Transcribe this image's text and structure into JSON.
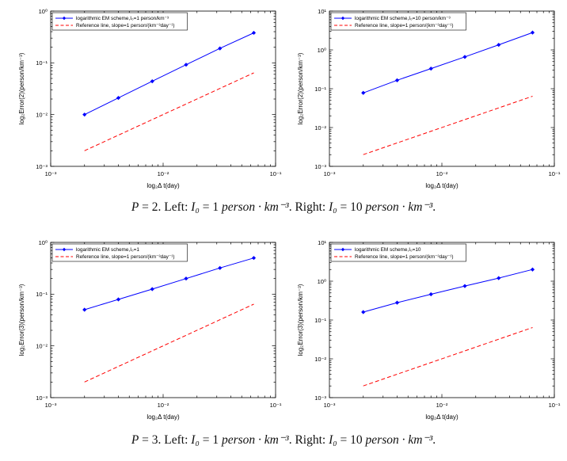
{
  "figure": {
    "background": "#ffffff"
  },
  "colors": {
    "series_blue": "#0000ff",
    "reference_red": "#ff0000",
    "axis": "#000000"
  },
  "captions": [
    {
      "segments": [
        {
          "t": "P",
          "i": true
        },
        {
          "t": " = 2. Left: ",
          "i": false
        },
        {
          "t": "I₀",
          "i": true
        },
        {
          "t": " = 1 ",
          "i": false
        },
        {
          "t": "person · km⁻³",
          "i": true
        },
        {
          "t": ". Right: ",
          "i": false
        },
        {
          "t": "I₀",
          "i": true
        },
        {
          "t": " = 10 ",
          "i": false
        },
        {
          "t": "person · km⁻³",
          "i": true
        },
        {
          "t": ".",
          "i": false
        }
      ]
    },
    {
      "segments": [
        {
          "t": "P",
          "i": true
        },
        {
          "t": " = 3. Left: ",
          "i": false
        },
        {
          "t": "I₀",
          "i": true
        },
        {
          "t": " = 1 ",
          "i": false
        },
        {
          "t": "person · km⁻³",
          "i": true
        },
        {
          "t": ". Right: ",
          "i": false
        },
        {
          "t": "I₀",
          "i": true
        },
        {
          "t": " = 10 ",
          "i": false
        },
        {
          "t": "person · km⁻³",
          "i": true
        },
        {
          "t": ".",
          "i": false
        }
      ]
    }
  ],
  "chart_data": [
    {
      "id": "p2-left",
      "type": "line",
      "xscale": "log",
      "yscale": "log",
      "xlim": [
        0.001,
        0.1
      ],
      "ylim": [
        0.001,
        1
      ],
      "xlabel": "log₂Δ t(day)",
      "ylabel": "log₂Error(2)(person/km⁻³)",
      "grid": false,
      "legend_position": "top-left",
      "series": [
        {
          "name": "logarithmic EM scheme,I₀=1 person/km⁻³",
          "color": "#0000ff",
          "line": "solid",
          "marker": "diamond",
          "x": [
            0.002,
            0.004,
            0.008,
            0.016,
            0.032,
            0.064
          ],
          "y": [
            0.01,
            0.021,
            0.044,
            0.092,
            0.19,
            0.38
          ]
        },
        {
          "name": "Reference line, slope=1 person/(km⁻³day⁻¹)",
          "color": "#ff0000",
          "line": "dashed",
          "marker": "none",
          "x": [
            0.002,
            0.064
          ],
          "y": [
            0.002,
            0.064
          ]
        }
      ]
    },
    {
      "id": "p2-right",
      "type": "line",
      "xscale": "log",
      "yscale": "log",
      "xlim": [
        0.001,
        0.1
      ],
      "ylim": [
        0.001,
        10
      ],
      "xlabel": "log₂Δ t(day)",
      "ylabel": "log₂Error(2)(person/km⁻³)",
      "grid": false,
      "legend_position": "top-left",
      "series": [
        {
          "name": "logarithmic EM scheme,I₀=10 person/km⁻³",
          "color": "#0000ff",
          "line": "solid",
          "marker": "diamond",
          "x": [
            0.002,
            0.004,
            0.008,
            0.016,
            0.032,
            0.064
          ],
          "y": [
            0.078,
            0.165,
            0.33,
            0.66,
            1.35,
            2.8
          ]
        },
        {
          "name": "Reference line, slope=1 person/(km⁻³day⁻¹)",
          "color": "#ff0000",
          "line": "dashed",
          "marker": "none",
          "x": [
            0.002,
            0.064
          ],
          "y": [
            0.002,
            0.064
          ]
        }
      ]
    },
    {
      "id": "p3-left",
      "type": "line",
      "xscale": "log",
      "yscale": "log",
      "xlim": [
        0.001,
        0.1
      ],
      "ylim": [
        0.001,
        1
      ],
      "xlabel": "log₂Δ t(day)",
      "ylabel": "log₂Error(3)(person/km⁻³)",
      "grid": false,
      "legend_position": "top-left",
      "series": [
        {
          "name": "logarithmic EM scheme,I₀=1",
          "color": "#0000ff",
          "line": "solid",
          "marker": "diamond",
          "x": [
            0.002,
            0.004,
            0.008,
            0.016,
            0.032,
            0.064
          ],
          "y": [
            0.05,
            0.079,
            0.125,
            0.2,
            0.32,
            0.5
          ]
        },
        {
          "name": "Reference line, slope=1 person/(km⁻³day⁻¹)",
          "color": "#ff0000",
          "line": "dashed",
          "marker": "none",
          "x": [
            0.002,
            0.064
          ],
          "y": [
            0.002,
            0.064
          ]
        }
      ]
    },
    {
      "id": "p3-right",
      "type": "line",
      "xscale": "log",
      "yscale": "log",
      "xlim": [
        0.001,
        0.1
      ],
      "ylim": [
        0.001,
        10
      ],
      "xlabel": "log₂Δ t(day)",
      "ylabel": "log₂Error(3)(person/km⁻³)",
      "grid": false,
      "legend_position": "top-left",
      "series": [
        {
          "name": "logarithmic EM scheme,I₀=10",
          "color": "#0000ff",
          "line": "solid",
          "marker": "diamond",
          "x": [
            0.002,
            0.004,
            0.008,
            0.016,
            0.032,
            0.064
          ],
          "y": [
            0.16,
            0.28,
            0.46,
            0.75,
            1.2,
            2.0
          ]
        },
        {
          "name": "Reference line, slope=1 person/(km⁻³day⁻¹)",
          "color": "#ff0000",
          "line": "dashed",
          "marker": "none",
          "x": [
            0.002,
            0.064
          ],
          "y": [
            0.002,
            0.064
          ]
        }
      ]
    }
  ]
}
